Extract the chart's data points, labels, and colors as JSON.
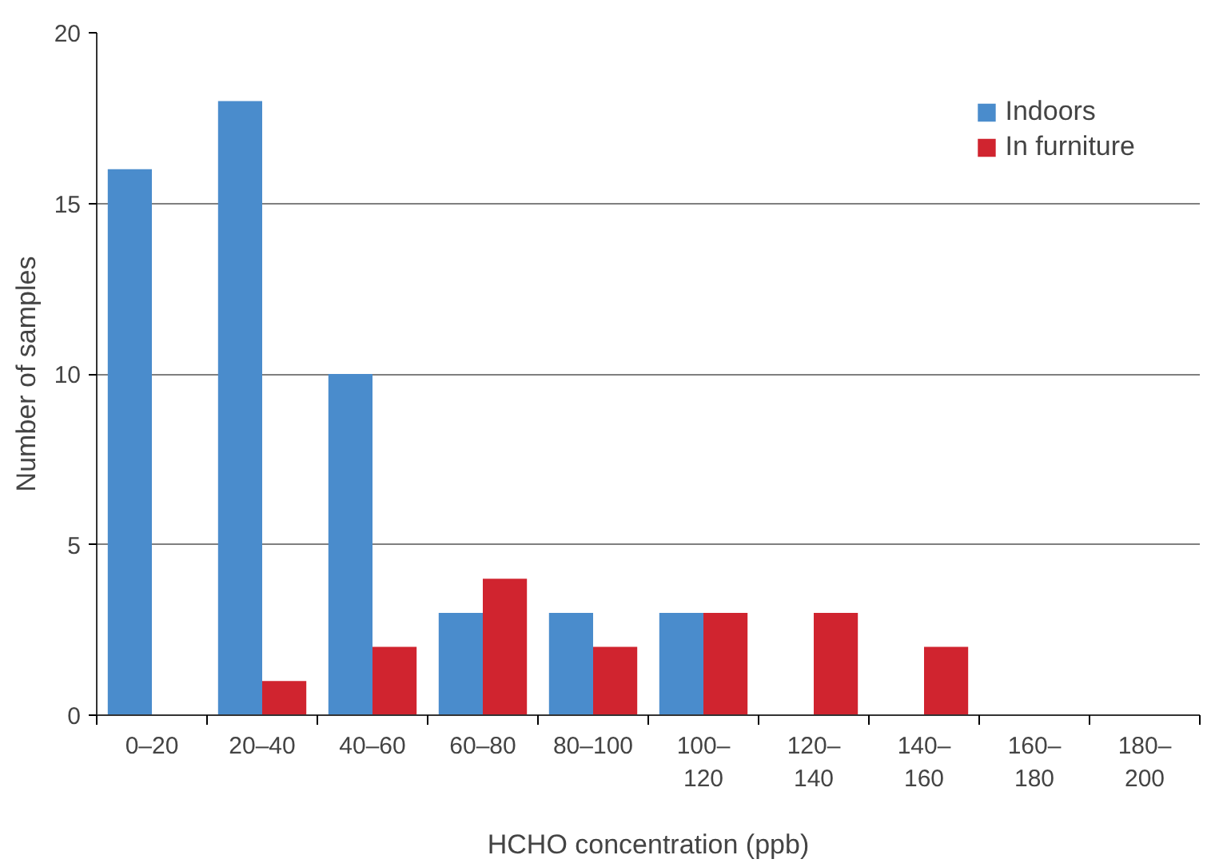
{
  "chart_data": {
    "type": "bar",
    "xlabel": "HCHO concentration (ppb)",
    "ylabel": "Number of samples",
    "categories": [
      "0–20",
      "20–40",
      "40–60",
      "60–80",
      "80–100",
      "100–\n120",
      "120–\n140",
      "140–\n160",
      "160–\n180",
      "180–\n200"
    ],
    "series": [
      {
        "name": "Indoors",
        "color": "#4a8ccc",
        "values": [
          16,
          18,
          10,
          3,
          3,
          3,
          0,
          0,
          0,
          0
        ]
      },
      {
        "name": "In furniture",
        "color": "#d0242f",
        "values": [
          0,
          1,
          2,
          4,
          2,
          3,
          3,
          2,
          0,
          0
        ]
      }
    ],
    "ylim": [
      0,
      20
    ],
    "yticks": [
      0,
      5,
      10,
      15,
      20
    ],
    "grid": "y",
    "legend": "top right"
  }
}
